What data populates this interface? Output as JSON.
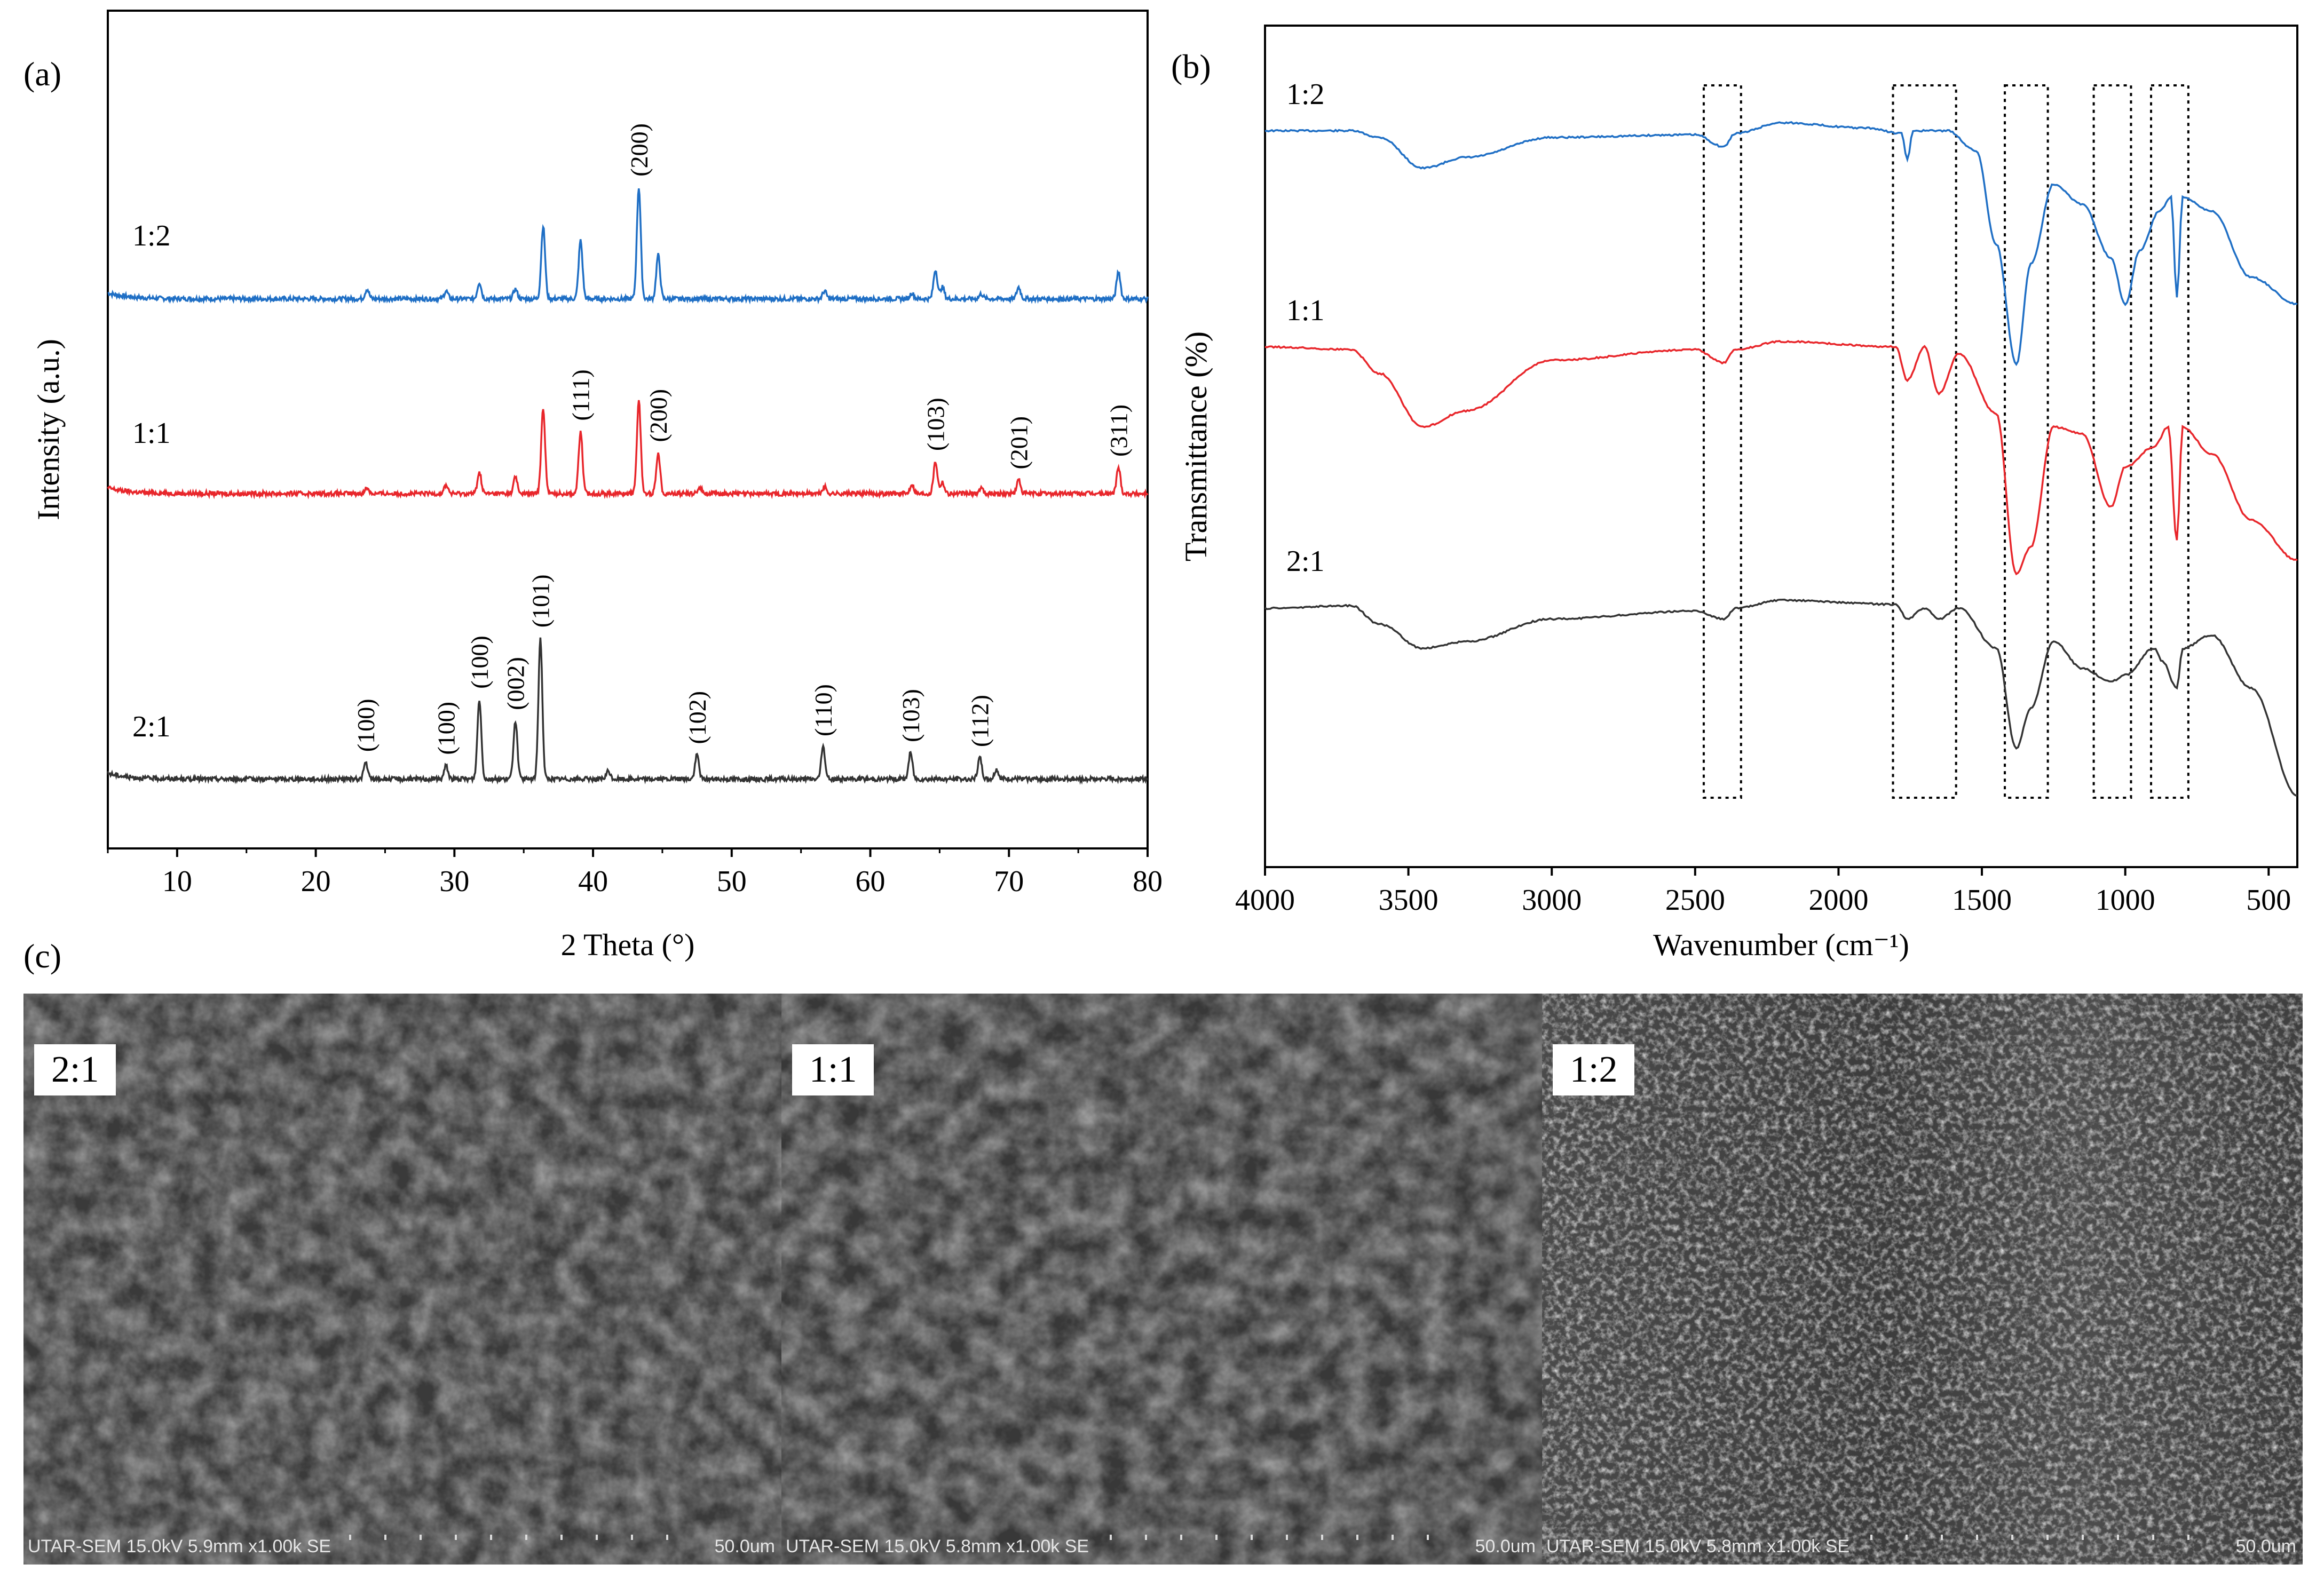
{
  "panel_labels": {
    "a": "(a)",
    "b": "(b)",
    "c": "(c)"
  },
  "chart_data": [
    {
      "type": "line",
      "panel": "(a)",
      "xlabel": "2 Theta (°)",
      "ylabel": "Intensity (a.u.)",
      "xlim": [
        5,
        80
      ],
      "xticks": [
        10,
        20,
        30,
        40,
        50,
        60,
        70,
        80
      ],
      "series": [
        {
          "name": "1:2",
          "color": "#1f6fc5",
          "peaks": [
            [
              23.7,
              0.1
            ],
            [
              29.4,
              0.08
            ],
            [
              31.8,
              0.17
            ],
            [
              34.4,
              0.1
            ],
            [
              36.4,
              0.75
            ],
            [
              39.1,
              0.6
            ],
            [
              43.3,
              1.15
            ],
            [
              44.7,
              0.45
            ],
            [
              56.7,
              0.08
            ],
            [
              63.0,
              0.06
            ],
            [
              64.7,
              0.3
            ],
            [
              65.2,
              0.12
            ],
            [
              68.0,
              0.05
            ],
            [
              70.7,
              0.12
            ],
            [
              77.9,
              0.28
            ]
          ],
          "annotations": [
            {
              "x": 43.3,
              "text": "(200)"
            }
          ]
        },
        {
          "name": "1:1",
          "color": "#e8262b",
          "peaks": [
            [
              23.7,
              0.06
            ],
            [
              29.4,
              0.09
            ],
            [
              31.8,
              0.22
            ],
            [
              34.4,
              0.17
            ],
            [
              36.4,
              0.88
            ],
            [
              39.1,
              0.64
            ],
            [
              43.3,
              0.95
            ],
            [
              44.7,
              0.42
            ],
            [
              47.7,
              0.07
            ],
            [
              56.7,
              0.07
            ],
            [
              63.0,
              0.1
            ],
            [
              64.7,
              0.33
            ],
            [
              65.2,
              0.12
            ],
            [
              68.0,
              0.06
            ],
            [
              70.7,
              0.14
            ],
            [
              77.9,
              0.27
            ]
          ],
          "annotations": [
            {
              "x": 39.1,
              "text": "(111)"
            },
            {
              "x": 44.7,
              "text": "(200)"
            },
            {
              "x": 64.7,
              "text": "(103)"
            },
            {
              "x": 70.7,
              "text": "(201)"
            },
            {
              "x": 77.9,
              "text": "(311)"
            }
          ]
        },
        {
          "name": "2:1",
          "color": "#333333",
          "peaks": [
            [
              23.6,
              0.17
            ],
            [
              29.4,
              0.14
            ],
            [
              31.8,
              0.82
            ],
            [
              34.4,
              0.6
            ],
            [
              36.2,
              1.45
            ],
            [
              41.1,
              0.08
            ],
            [
              47.5,
              0.25
            ],
            [
              56.6,
              0.33
            ],
            [
              62.9,
              0.27
            ],
            [
              67.9,
              0.22
            ],
            [
              69.1,
              0.1
            ]
          ],
          "annotations": [
            {
              "x": 23.6,
              "text": "(100)"
            },
            {
              "x": 29.4,
              "text": "(100)"
            },
            {
              "x": 31.8,
              "text": "(100)"
            },
            {
              "x": 34.4,
              "text": "(002)"
            },
            {
              "x": 36.2,
              "text": "(101)"
            },
            {
              "x": 47.5,
              "text": "(102)"
            },
            {
              "x": 56.6,
              "text": "(110)"
            },
            {
              "x": 62.9,
              "text": "(103)"
            },
            {
              "x": 67.9,
              "text": "(112)"
            }
          ]
        }
      ]
    },
    {
      "type": "line",
      "panel": "(b)",
      "xlabel": "Wavenumber (cm⁻¹)",
      "ylabel": "Transmittance (%)",
      "xlim": [
        4000,
        400
      ],
      "xticks": [
        4000,
        3500,
        3000,
        2500,
        2000,
        1500,
        1000,
        500
      ],
      "dotted_boxes": [
        [
          2470,
          2340
        ],
        [
          1810,
          1590
        ],
        [
          1420,
          1270
        ],
        [
          1110,
          980
        ],
        [
          910,
          780
        ]
      ],
      "series": [
        {
          "name": "1:2",
          "color": "#1f6fc5",
          "points": [
            [
              4000,
              0.0
            ],
            [
              3700,
              0.0
            ],
            [
              3600,
              -0.05
            ],
            [
              3450,
              -0.28
            ],
            [
              3300,
              -0.2
            ],
            [
              3000,
              -0.05
            ],
            [
              2500,
              -0.03
            ],
            [
              2400,
              -0.12
            ],
            [
              2360,
              -0.02
            ],
            [
              2200,
              0.06
            ],
            [
              1900,
              0.02
            ],
            [
              1780,
              -0.02
            ],
            [
              1760,
              -0.22
            ],
            [
              1740,
              0.0
            ],
            [
              1620,
              0.0
            ],
            [
              1520,
              -0.15
            ],
            [
              1450,
              -0.85
            ],
            [
              1380,
              -1.75
            ],
            [
              1330,
              -1.0
            ],
            [
              1250,
              -0.4
            ],
            [
              1150,
              -0.55
            ],
            [
              1050,
              -0.95
            ],
            [
              1000,
              -1.3
            ],
            [
              950,
              -0.9
            ],
            [
              880,
              -0.6
            ],
            [
              840,
              -0.5
            ],
            [
              820,
              -1.25
            ],
            [
              800,
              -0.5
            ],
            [
              700,
              -0.6
            ],
            [
              560,
              -1.1
            ],
            [
              400,
              -1.3
            ]
          ]
        },
        {
          "name": "1:1",
          "color": "#e8262b",
          "points": [
            [
              4000,
              0.0
            ],
            [
              3700,
              -0.02
            ],
            [
              3600,
              -0.2
            ],
            [
              3450,
              -0.6
            ],
            [
              3300,
              -0.48
            ],
            [
              3000,
              -0.1
            ],
            [
              2500,
              -0.02
            ],
            [
              2400,
              -0.12
            ],
            [
              2360,
              -0.02
            ],
            [
              2200,
              0.04
            ],
            [
              1800,
              0.0
            ],
            [
              1760,
              -0.25
            ],
            [
              1700,
              0.0
            ],
            [
              1650,
              -0.35
            ],
            [
              1580,
              -0.05
            ],
            [
              1450,
              -0.5
            ],
            [
              1380,
              -1.7
            ],
            [
              1330,
              -1.5
            ],
            [
              1250,
              -0.6
            ],
            [
              1150,
              -0.65
            ],
            [
              1050,
              -1.2
            ],
            [
              1000,
              -0.9
            ],
            [
              900,
              -0.75
            ],
            [
              850,
              -0.6
            ],
            [
              820,
              -1.45
            ],
            [
              800,
              -0.6
            ],
            [
              700,
              -0.8
            ],
            [
              560,
              -1.3
            ],
            [
              400,
              -1.6
            ]
          ]
        },
        {
          "name": "2:1",
          "color": "#333333",
          "points": [
            [
              4000,
              0.0
            ],
            [
              3700,
              0.02
            ],
            [
              3600,
              -0.12
            ],
            [
              3450,
              -0.3
            ],
            [
              3300,
              -0.25
            ],
            [
              3000,
              -0.08
            ],
            [
              2500,
              -0.02
            ],
            [
              2400,
              -0.08
            ],
            [
              2360,
              0.0
            ],
            [
              2200,
              0.06
            ],
            [
              1800,
              0.03
            ],
            [
              1760,
              -0.08
            ],
            [
              1700,
              0.0
            ],
            [
              1650,
              -0.08
            ],
            [
              1580,
              0.0
            ],
            [
              1450,
              -0.3
            ],
            [
              1380,
              -1.05
            ],
            [
              1330,
              -0.75
            ],
            [
              1250,
              -0.25
            ],
            [
              1150,
              -0.45
            ],
            [
              1050,
              -0.55
            ],
            [
              1000,
              -0.5
            ],
            [
              900,
              -0.3
            ],
            [
              870,
              -0.4
            ],
            [
              820,
              -0.6
            ],
            [
              800,
              -0.3
            ],
            [
              700,
              -0.2
            ],
            [
              560,
              -0.6
            ],
            [
              400,
              -1.4
            ]
          ]
        }
      ]
    }
  ],
  "sem": {
    "panels": [
      {
        "label": "2:1",
        "info": "UTAR-SEM 15.0kV 5.9mm x1.00k SE",
        "scale": "50.0um"
      },
      {
        "label": "1:1",
        "info": "UTAR-SEM 15.0kV 5.8mm x1.00k SE",
        "scale": "50.0um"
      },
      {
        "label": "1:2",
        "info": "UTAR-SEM 15.0kV 5.8mm x1.00k SE",
        "scale": "50.0um"
      }
    ]
  }
}
